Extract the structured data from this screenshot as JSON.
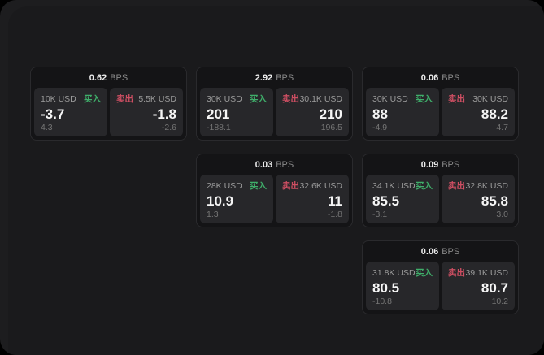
{
  "labels": {
    "bps_suffix": "BPS",
    "buy": "买入",
    "sell": "卖出"
  },
  "colors": {
    "page_background": "#000000",
    "window_background": "#1d1d1f",
    "card_background": "#141416",
    "panel_background": "#27272a",
    "buy_green": "#3fae6a",
    "sell_red": "#cf4f63"
  },
  "cards": [
    {
      "bps": "0.62",
      "buy": {
        "amount": "10K USD",
        "value": "-3.7",
        "sub": "4.3"
      },
      "sell": {
        "amount": "5.5K USD",
        "value": "-1.8",
        "sub": "-2.6"
      }
    },
    {
      "bps": "2.92",
      "buy": {
        "amount": "30K USD",
        "value": "201",
        "sub": "-188.1"
      },
      "sell": {
        "amount": "30.1K USD",
        "value": "210",
        "sub": "196.5"
      }
    },
    {
      "bps": "0.06",
      "buy": {
        "amount": "30K USD",
        "value": "88",
        "sub": "-4.9"
      },
      "sell": {
        "amount": "30K USD",
        "value": "88.2",
        "sub": "4.7"
      }
    },
    {
      "bps": "0.03",
      "buy": {
        "amount": "28K USD",
        "value": "10.9",
        "sub": "1.3"
      },
      "sell": {
        "amount": "32.6K USD",
        "value": "11",
        "sub": "-1.8"
      }
    },
    {
      "bps": "0.09",
      "buy": {
        "amount": "34.1K USD",
        "value": "85.5",
        "sub": "-3.1"
      },
      "sell": {
        "amount": "32.8K USD",
        "value": "85.8",
        "sub": "3.0"
      }
    },
    {
      "bps": "0.06",
      "buy": {
        "amount": "31.8K USD",
        "value": "80.5",
        "sub": "-10.8"
      },
      "sell": {
        "amount": "39.1K USD",
        "value": "80.7",
        "sub": "10.2"
      }
    }
  ]
}
